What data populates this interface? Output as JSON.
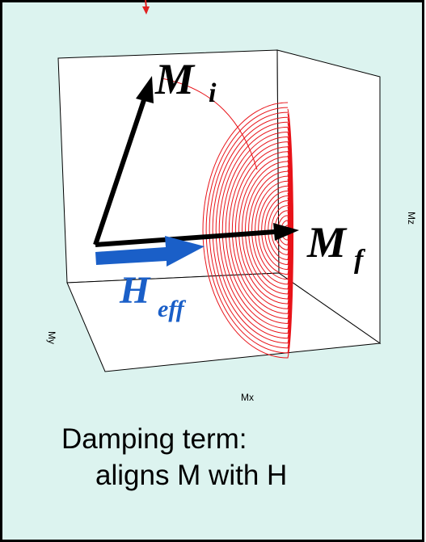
{
  "labels": {
    "m_initial": {
      "main": "M",
      "sub": "i"
    },
    "m_final": {
      "main": "M",
      "sub": "f"
    },
    "h_effective": {
      "main": "H",
      "sub": "eff"
    }
  },
  "axes": {
    "x": "Mx",
    "y": "My",
    "z": "Mz"
  },
  "caption": {
    "line1": "Damping term:",
    "line2": "aligns M with H"
  }
}
